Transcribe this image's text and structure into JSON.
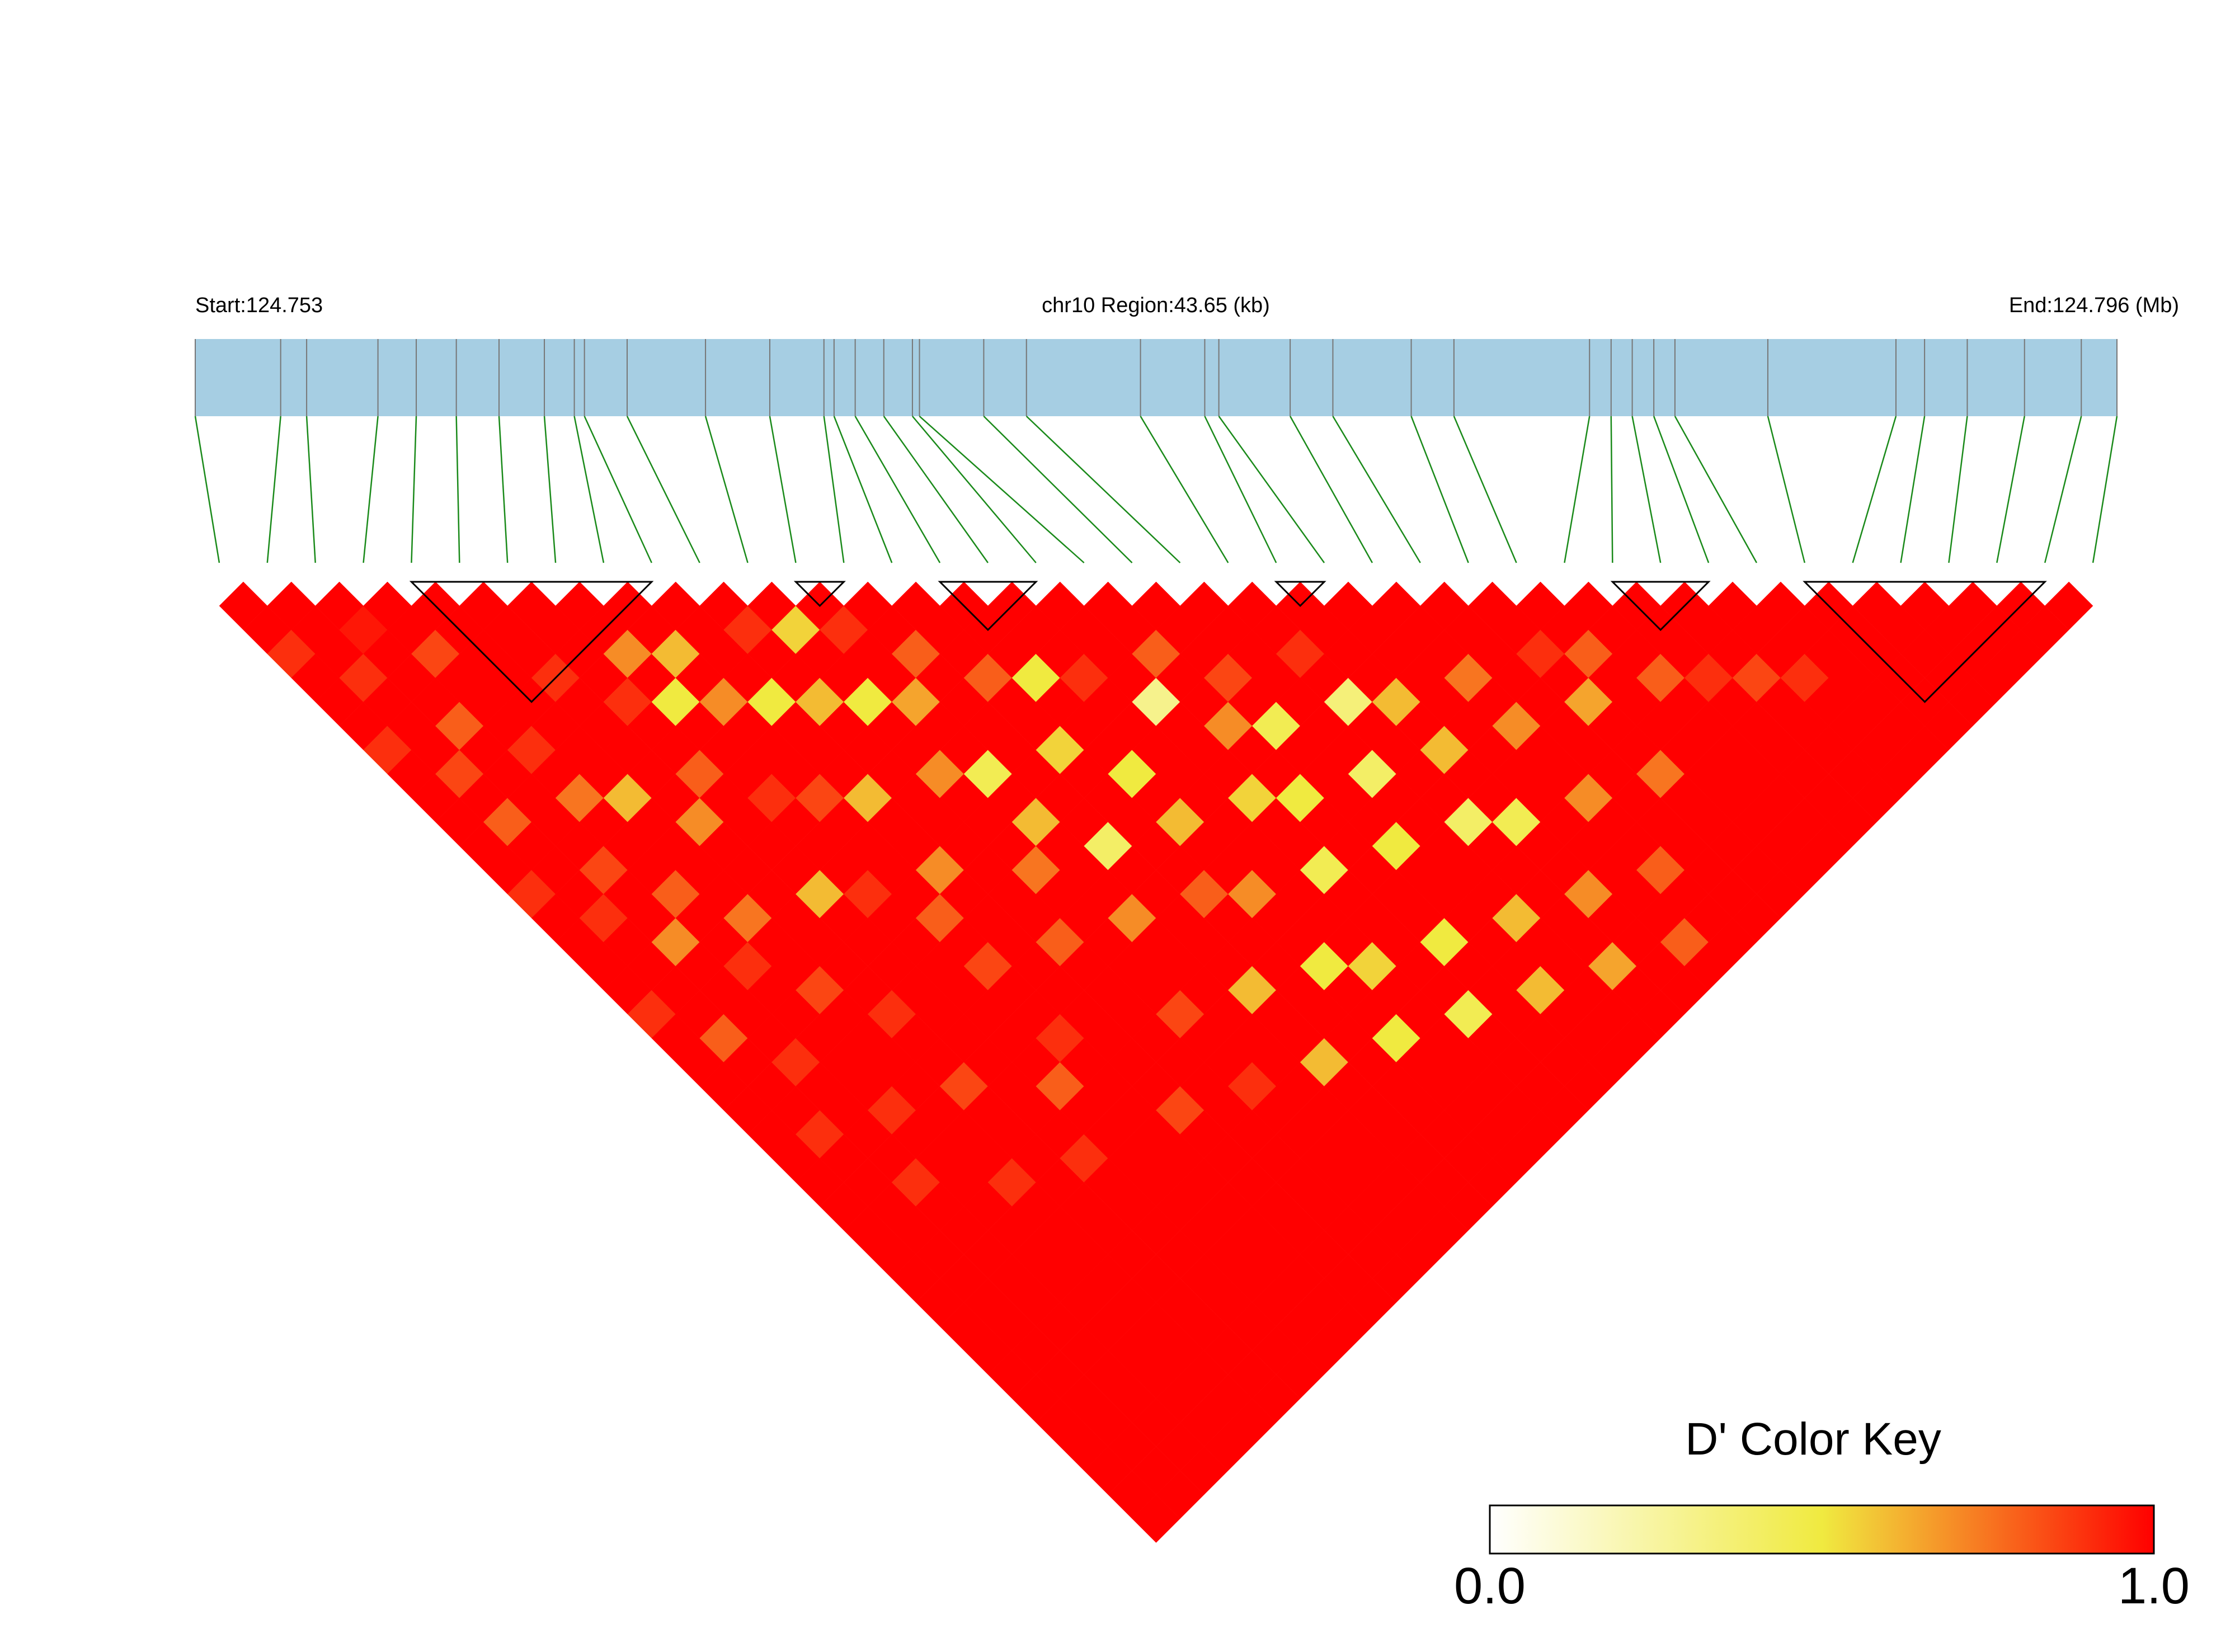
{
  "chart_data": {
    "type": "ld_heatmap",
    "start_label": "Start:124.753",
    "region_label": "chr10 Region:43.65 (kb)",
    "end_label": "End:124.796 (Mb)",
    "xlim": [
      0,
      43.65
    ],
    "snp_positions_kb": [
      0,
      1.94,
      2.53,
      4.15,
      5.02,
      5.93,
      6.9,
      7.93,
      8.61,
      8.84,
      9.81,
      11.59,
      13.05,
      14.28,
      14.51,
      14.99,
      15.64,
      16.29,
      16.45,
      17.91,
      18.88,
      21.47,
      22.93,
      23.25,
      24.87,
      25.84,
      27.62,
      28.59,
      31.67,
      32.16,
      32.64,
      33.13,
      33.61,
      35.72,
      38.63,
      39.28,
      40.25,
      41.55,
      42.84,
      43.65
    ],
    "dprime": [
      [
        1
      ],
      [
        1,
        1
      ],
      [
        0.9,
        1,
        1
      ],
      [
        1,
        1,
        0.95,
        1
      ],
      [
        1,
        0.9,
        1,
        1,
        1
      ],
      [
        1,
        1,
        1,
        0.85,
        1,
        1
      ],
      [
        0.9,
        1,
        1,
        1,
        1,
        1,
        1
      ],
      [
        1,
        1,
        0.8,
        1,
        1,
        1,
        1,
        1
      ],
      [
        1,
        0.85,
        1,
        1,
        1,
        0.9,
        1,
        1,
        1
      ],
      [
        1,
        1,
        1,
        0.9,
        1,
        1,
        1,
        0.7,
        1,
        1
      ],
      [
        1,
        0.8,
        1,
        1,
        1,
        1,
        0.9,
        1,
        0.6,
        1,
        1
      ],
      [
        1,
        1,
        1,
        0.75,
        1,
        1,
        1,
        0.5,
        1,
        1,
        0.9,
        1
      ],
      [
        0.9,
        1,
        1,
        1,
        0.6,
        1,
        1,
        1,
        0.7,
        1,
        1,
        0.55,
        1
      ],
      [
        1,
        1,
        0.85,
        1,
        1,
        1,
        0.8,
        1,
        1,
        0.5,
        1,
        1,
        0.9,
        1
      ],
      [
        1,
        0.9,
        1,
        1,
        1,
        0.7,
        1,
        1,
        1,
        1,
        0.6,
        1,
        1,
        1,
        1
      ],
      [
        1,
        1,
        1,
        0.8,
        1,
        1,
        1,
        0.9,
        1,
        1,
        1,
        0.5,
        1,
        0.8,
        1,
        1
      ],
      [
        1,
        1,
        0.7,
        1,
        1,
        1,
        1,
        1,
        0.85,
        1,
        1,
        1,
        0.65,
        1,
        1,
        1,
        1
      ],
      [
        0.9,
        1,
        1,
        1,
        0.75,
        1,
        1,
        1,
        1,
        0.6,
        1,
        1,
        1,
        1,
        0.8,
        1,
        1,
        1
      ],
      [
        1,
        1,
        1,
        0.9,
        1,
        1,
        0.6,
        1,
        1,
        1,
        1,
        0.7,
        1,
        1,
        1,
        0.5,
        1,
        1,
        1
      ],
      [
        1,
        0.8,
        1,
        1,
        1,
        1,
        1,
        0.9,
        1,
        1,
        1,
        1,
        0.45,
        1,
        1,
        1,
        0.9,
        1,
        1,
        1
      ],
      [
        1,
        1,
        1,
        1,
        0.85,
        1,
        1,
        1,
        1,
        0.7,
        1,
        1,
        1,
        1,
        0.55,
        1,
        1,
        1,
        0.8,
        1,
        1
      ],
      [
        1,
        1,
        0.9,
        1,
        1,
        1,
        1,
        1,
        0.8,
        1,
        1,
        1,
        0.6,
        1,
        1,
        1,
        1,
        0.3,
        1,
        1,
        1,
        1
      ],
      [
        1,
        1,
        1,
        1,
        1,
        0.9,
        1,
        1,
        1,
        1,
        1,
        0.75,
        1,
        1,
        1,
        0.5,
        1,
        1,
        1,
        0.85,
        1,
        1,
        1
      ],
      [
        1,
        0.9,
        1,
        1,
        1,
        1,
        1,
        1,
        0.85,
        1,
        1,
        1,
        1,
        0.4,
        1,
        1,
        1,
        1,
        0.7,
        1,
        1,
        0.9,
        1,
        1
      ],
      [
        1,
        1,
        1,
        0.9,
        1,
        1,
        1,
        1,
        1,
        1,
        0.8,
        1,
        1,
        1,
        1,
        0.6,
        1,
        1,
        1,
        0.45,
        1,
        1,
        1,
        1,
        1
      ],
      [
        1,
        1,
        1,
        1,
        1,
        0.85,
        1,
        1,
        1,
        1,
        1,
        1,
        0.7,
        1,
        1,
        1,
        1,
        0.55,
        1,
        1,
        1,
        0.35,
        1,
        1,
        1,
        1
      ],
      [
        1,
        1,
        0.9,
        1,
        1,
        1,
        1,
        1,
        0.9,
        1,
        1,
        1,
        1,
        1,
        0.8,
        1,
        1,
        1,
        0.5,
        1,
        1,
        1,
        0.6,
        1,
        1,
        1,
        1
      ],
      [
        1,
        1,
        1,
        1,
        1,
        1,
        1,
        0.8,
        1,
        1,
        1,
        1,
        1,
        1,
        1,
        0.7,
        1,
        1,
        1,
        1,
        0.4,
        1,
        1,
        1,
        0.75,
        1,
        1,
        1
      ],
      [
        1,
        1,
        1,
        1,
        0.9,
        1,
        1,
        1,
        1,
        1,
        1,
        0.85,
        1,
        1,
        1,
        1,
        1,
        0.45,
        1,
        1,
        1,
        1,
        0.6,
        1,
        1,
        1,
        0.9,
        1,
        1
      ],
      [
        1,
        1,
        1,
        1,
        1,
        1,
        0.9,
        1,
        1,
        1,
        1,
        1,
        1,
        0.6,
        1,
        1,
        1,
        1,
        1,
        0.5,
        1,
        1,
        1,
        1,
        0.7,
        1,
        1,
        0.8,
        1,
        1
      ],
      [
        1,
        1,
        1,
        1,
        1,
        1,
        1,
        1,
        1,
        0.85,
        1,
        1,
        1,
        1,
        1,
        0.5,
        1,
        1,
        1,
        1,
        1,
        0.4,
        1,
        1,
        1,
        1,
        0.65,
        1,
        1,
        1,
        1
      ],
      [
        1,
        1,
        1,
        1,
        1,
        1,
        1,
        1,
        1,
        1,
        1,
        0.9,
        1,
        1,
        1,
        1,
        0.55,
        1,
        1,
        1,
        1,
        1,
        0.45,
        1,
        1,
        1,
        1,
        1,
        0.8,
        1,
        1,
        1
      ],
      [
        1,
        1,
        1,
        1,
        1,
        1,
        1,
        1,
        1,
        1,
        1,
        1,
        1,
        0.6,
        1,
        1,
        1,
        1,
        0.5,
        1,
        1,
        1,
        1,
        1,
        0.7,
        1,
        1,
        1,
        1,
        0.9,
        1,
        1,
        1
      ],
      [
        1,
        1,
        1,
        1,
        1,
        1,
        1,
        1,
        1,
        1,
        1,
        1,
        1,
        1,
        1,
        0.5,
        1,
        1,
        1,
        1,
        0.6,
        1,
        1,
        1,
        1,
        1,
        0.75,
        1,
        1,
        1,
        0.85,
        1,
        1,
        1
      ],
      [
        1,
        1,
        1,
        1,
        1,
        1,
        1,
        1,
        1,
        1,
        1,
        1,
        1,
        1,
        1,
        1,
        1,
        0.45,
        1,
        1,
        1,
        1,
        0.7,
        1,
        1,
        1,
        1,
        1,
        1,
        1,
        1,
        0.9,
        1,
        1,
        1
      ],
      [
        1,
        1,
        1,
        1,
        1,
        1,
        1,
        1,
        1,
        1,
        1,
        1,
        1,
        1,
        1,
        1,
        1,
        1,
        1,
        0.6,
        1,
        1,
        1,
        1,
        0.8,
        1,
        1,
        1,
        1,
        1,
        1,
        1,
        1,
        1,
        1,
        1
      ],
      [
        1,
        1,
        1,
        1,
        1,
        1,
        1,
        1,
        1,
        1,
        1,
        1,
        1,
        1,
        1,
        1,
        1,
        1,
        1,
        1,
        1,
        0.65,
        1,
        1,
        1,
        1,
        1,
        1,
        1,
        1,
        1,
        1,
        1,
        1,
        1,
        1,
        1
      ],
      [
        1,
        1,
        1,
        1,
        1,
        1,
        1,
        1,
        1,
        1,
        1,
        1,
        1,
        1,
        1,
        1,
        1,
        1,
        1,
        1,
        1,
        1,
        1,
        0.8,
        1,
        1,
        1,
        1,
        1,
        1,
        1,
        1,
        1,
        1,
        1,
        1,
        1,
        1
      ],
      [
        1,
        1,
        1,
        1,
        1,
        1,
        1,
        1,
        1,
        1,
        1,
        1,
        1,
        1,
        1,
        1,
        1,
        1,
        1,
        1,
        1,
        1,
        1,
        1,
        1,
        1,
        1,
        1,
        1,
        1,
        1,
        1,
        1,
        1,
        1,
        1,
        1,
        1,
        1
      ]
    ],
    "blocks": [
      [
        4,
        9
      ],
      [
        12,
        13
      ],
      [
        15,
        17
      ],
      [
        22,
        23
      ],
      [
        29,
        31
      ],
      [
        33,
        38
      ]
    ],
    "colorbar_title": "D' Color Key",
    "colorbar_lim": [
      0,
      1
    ],
    "colorbar_ticks": [
      {
        "value": 0,
        "label": "0.0"
      },
      {
        "value": 1,
        "label": "1.0"
      }
    ],
    "colors": [
      "#ffffff",
      "#f0ea40",
      "#ff0000"
    ]
  }
}
